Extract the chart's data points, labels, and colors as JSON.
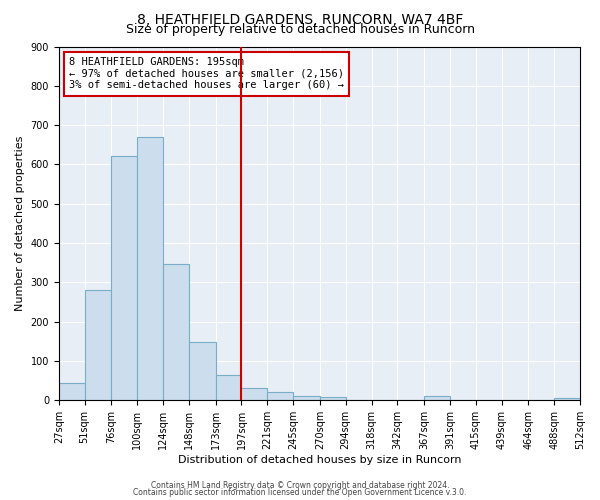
{
  "title": "8, HEATHFIELD GARDENS, RUNCORN, WA7 4BF",
  "subtitle": "Size of property relative to detached houses in Runcorn",
  "xlabel": "Distribution of detached houses by size in Runcorn",
  "ylabel": "Number of detached properties",
  "bar_edges": [
    27,
    51,
    76,
    100,
    124,
    148,
    173,
    197,
    221,
    245,
    270,
    294,
    318,
    342,
    367,
    391,
    415,
    439,
    464,
    488,
    512
  ],
  "bar_heights": [
    44,
    280,
    622,
    671,
    347,
    148,
    65,
    32,
    21,
    12,
    8,
    0,
    0,
    0,
    10,
    0,
    0,
    0,
    0,
    7
  ],
  "bar_color": "#ccdded",
  "bar_edgecolor": "#7aaec8",
  "vline_x": 197,
  "vline_color": "#cc0000",
  "annotation_text": "8 HEATHFIELD GARDENS: 195sqm\n← 97% of detached houses are smaller (2,156)\n3% of semi-detached houses are larger (60) →",
  "annotation_box_edgecolor": "#cc0000",
  "annotation_box_facecolor": "#ffffff",
  "ylim": [
    0,
    900
  ],
  "yticks": [
    0,
    100,
    200,
    300,
    400,
    500,
    600,
    700,
    800,
    900
  ],
  "footer1": "Contains HM Land Registry data © Crown copyright and database right 2024.",
  "footer2": "Contains public sector information licensed under the Open Government Licence v.3.0.",
  "fig_facecolor": "#ffffff",
  "axes_facecolor": "#e8eef5",
  "grid_color": "#ffffff",
  "title_fontsize": 10,
  "subtitle_fontsize": 9
}
